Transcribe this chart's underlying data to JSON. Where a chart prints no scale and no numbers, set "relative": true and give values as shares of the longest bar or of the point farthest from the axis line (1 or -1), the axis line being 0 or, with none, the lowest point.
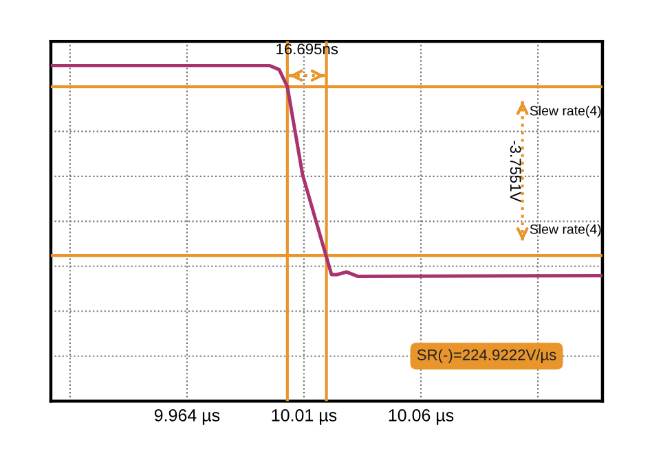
{
  "chart_data": {
    "type": "line",
    "relative": true,
    "x": [
      9.9058,
      9.9993,
      10.0034,
      10.0069,
      10.0134,
      10.0234,
      10.0258,
      10.0281,
      10.0322,
      10.0369,
      10.1416
    ],
    "series": [
      {
        "color": "#a8336e",
        "values": [
          1,
          1,
          0.988,
          0.937,
          0.675,
          0.434,
          0.377,
          0.377,
          0.385,
          0.372,
          0.374
        ]
      }
    ],
    "xlim": [
      9.9058,
      10.1416
    ],
    "xticks": [
      {
        "value": 9.914,
        "label": null
      },
      {
        "value": 9.964,
        "label": "9.964 µs"
      },
      {
        "value": 10.014,
        "label": "10.01 µs"
      },
      {
        "value": 10.064,
        "label": "10.06 µs"
      },
      {
        "value": 10.114,
        "label": null
      }
    ],
    "tick_labels": "x",
    "grid": true,
    "line_style": "solid",
    "marker": "none",
    "ref_lines": [
      {
        "axis": "y",
        "value": 0.937,
        "label": "Slew rate(4)",
        "color": "#e8952c"
      },
      {
        "axis": "y",
        "value": 0.434,
        "label": "Slew rate(4)",
        "color": "#e8952c"
      },
      {
        "axis": "x",
        "value": 10.0069,
        "color": "#e8952c"
      },
      {
        "axis": "x",
        "value": 10.0236,
        "color": "#e8952c"
      }
    ],
    "annotations": [
      "16.695ns",
      "-3.7551V",
      "SR(-)=224.9222V/µs"
    ]
  }
}
